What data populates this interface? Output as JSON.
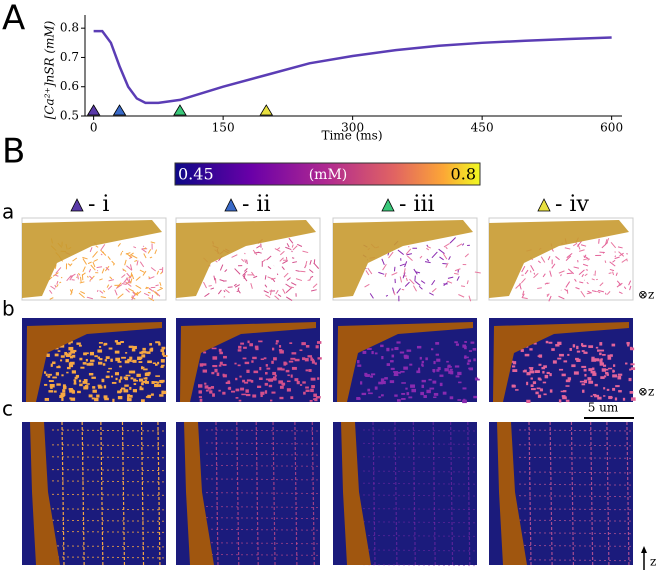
{
  "panel_labels": [
    "A",
    "B"
  ],
  "chart_data": {
    "type": "line",
    "xlabel": "Time (ms)",
    "ylabel": "[Ca²⁺]nSR (mM)",
    "x": [
      0,
      10,
      20,
      30,
      40,
      50,
      60,
      75,
      100,
      150,
      200,
      250,
      300,
      350,
      400,
      450,
      500,
      550,
      600
    ],
    "series": [
      {
        "color": "#5b3db5",
        "values": [
          0.79,
          0.79,
          0.75,
          0.67,
          0.6,
          0.56,
          0.545,
          0.545,
          0.555,
          0.6,
          0.64,
          0.68,
          0.705,
          0.725,
          0.74,
          0.75,
          0.757,
          0.763,
          0.768
        ]
      }
    ],
    "markers": {
      "x": [
        0,
        30,
        100,
        200
      ],
      "colors": [
        "#5a3aa8",
        "#3a6ac8",
        "#3ac87a",
        "#e8e040"
      ]
    },
    "xlim": [
      -10,
      612
    ],
    "ylim": [
      0.5,
      0.845
    ],
    "xticks": [
      0,
      150,
      300,
      450,
      600
    ],
    "yticks": [
      0.5,
      0.6,
      0.7,
      0.8
    ]
  },
  "colorbar": {
    "range": [
      0.45,
      0.8
    ],
    "label": "(mM)"
  },
  "columns": [
    "- i",
    "- ii",
    "- iii",
    "- iv"
  ],
  "rows": [
    "a",
    "b",
    "c"
  ],
  "orientation_labels": [
    "⊗z",
    "⊗z",
    "z"
  ],
  "scale_bar": "5 um"
}
